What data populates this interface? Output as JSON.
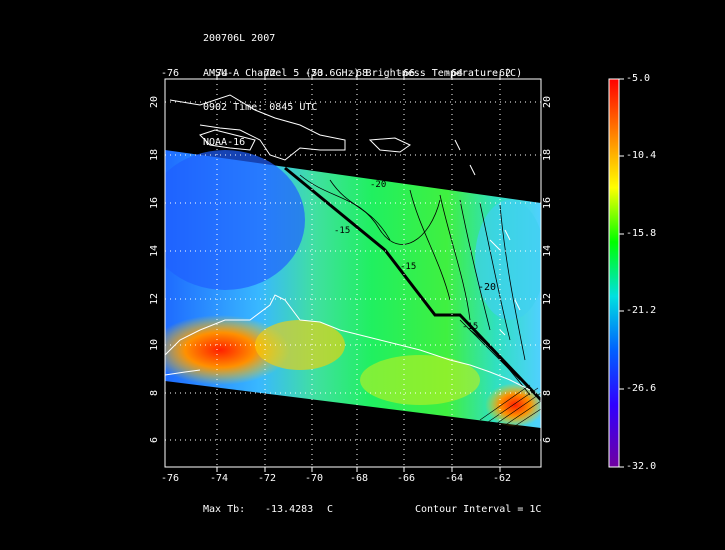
{
  "header": {
    "line1": "200706L 2007",
    "line2": "AMSU-A Channel 5 (53.6GHz) Brightness Temperature (C)",
    "line3": "0902 Time: 0845 UTC",
    "line4": "NOAA-16"
  },
  "map": {
    "lon_ticks": [
      "-76",
      "-74",
      "-72",
      "-70",
      "-68",
      "-66",
      "-64",
      "-62"
    ],
    "lat_ticks": [
      "20",
      "18",
      "16",
      "14",
      "12",
      "10",
      "8",
      "6"
    ],
    "contour_labels": [
      "-20",
      "-15",
      "-15",
      "-20",
      "-15"
    ]
  },
  "colorbar": {
    "labels": [
      "-5.0",
      "-10.4",
      "-15.8",
      "-21.2",
      "-26.6",
      "-32.0"
    ],
    "colors": [
      "#ff0000",
      "#ff8000",
      "#ffff00",
      "#00ff00",
      "#00e0e0",
      "#0060ff",
      "#3000ff",
      "#7000a0"
    ]
  },
  "footer": {
    "max_label": "Max Tb:",
    "max_value": "-13.4283",
    "max_unit": "C",
    "contour_interval": "Contour Interval = 1C"
  }
}
